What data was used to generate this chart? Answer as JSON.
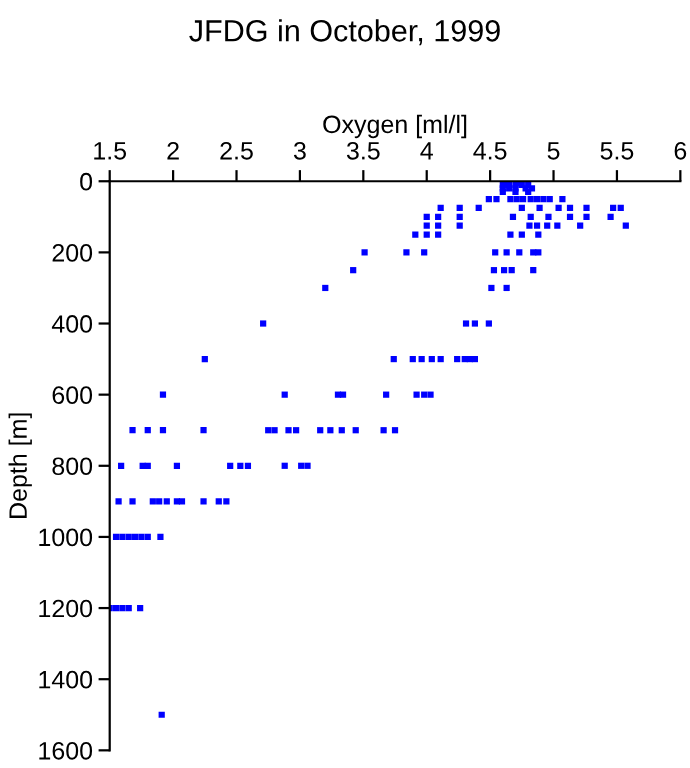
{
  "chart_data": {
    "type": "scatter",
    "title": "JFDG in October, 1999",
    "xlabel": "Oxygen [ml/l]",
    "ylabel": "Depth [m]",
    "xlim": [
      1.5,
      6
    ],
    "ylim": [
      1600,
      0
    ],
    "xticks": [
      1.5,
      2,
      2.5,
      3,
      3.5,
      4,
      4.5,
      5,
      5.5,
      6
    ],
    "yticks": [
      0,
      200,
      400,
      600,
      800,
      1000,
      1200,
      1400,
      1600
    ],
    "grid": false,
    "marker": "square",
    "series": [
      {
        "color": "#0000ff",
        "x": [
          4.62,
          4.72,
          4.6,
          4.65,
          4.7,
          4.75,
          4.8,
          4.6,
          4.65,
          4.7,
          4.78,
          4.83,
          4.6,
          4.7,
          4.8,
          4.49,
          4.55,
          4.66,
          4.71,
          4.76,
          4.82,
          4.87,
          4.92,
          4.97,
          5.07,
          4.11,
          4.26,
          4.41,
          4.75,
          4.89,
          5.04,
          5.13,
          5.26,
          5.47,
          5.53,
          4.0,
          4.09,
          4.26,
          4.68,
          4.82,
          4.96,
          5.13,
          5.26,
          5.45,
          4.0,
          4.09,
          4.26,
          4.81,
          4.87,
          4.95,
          5.03,
          5.21,
          5.57,
          3.91,
          4.0,
          4.09,
          4.66,
          4.75,
          4.88,
          3.51,
          3.84,
          3.98,
          4.54,
          4.63,
          4.73,
          4.84,
          4.88,
          3.42,
          4.53,
          4.61,
          4.67,
          4.84,
          3.2,
          4.51,
          4.63,
          2.71,
          4.31,
          4.38,
          4.49,
          2.25,
          3.74,
          3.89,
          3.96,
          4.04,
          4.11,
          4.24,
          4.3,
          4.34,
          4.38,
          1.92,
          2.88,
          3.3,
          3.34,
          3.68,
          3.92,
          3.98,
          4.03,
          1.68,
          1.8,
          1.92,
          2.24,
          2.75,
          2.8,
          2.91,
          2.97,
          3.16,
          3.24,
          3.33,
          3.44,
          3.66,
          3.75,
          1.59,
          1.76,
          1.8,
          2.03,
          2.45,
          2.53,
          2.59,
          2.88,
          3.01,
          3.06,
          1.57,
          1.68,
          1.84,
          1.89,
          1.95,
          2.03,
          2.07,
          2.24,
          2.36,
          2.42,
          1.55,
          1.6,
          1.65,
          1.7,
          1.75,
          1.8,
          1.9,
          1.5,
          1.55,
          1.6,
          1.65,
          1.74,
          1.91
        ],
        "values": [
          5,
          5,
          10,
          10,
          10,
          10,
          10,
          20,
          20,
          20,
          20,
          20,
          30,
          30,
          30,
          50,
          50,
          50,
          50,
          50,
          50,
          50,
          50,
          50,
          50,
          75,
          75,
          75,
          75,
          75,
          75,
          75,
          75,
          75,
          75,
          100,
          100,
          100,
          100,
          100,
          100,
          100,
          100,
          100,
          125,
          125,
          125,
          125,
          125,
          125,
          125,
          125,
          125,
          150,
          150,
          150,
          150,
          150,
          150,
          200,
          200,
          200,
          200,
          200,
          200,
          200,
          200,
          250,
          250,
          250,
          250,
          250,
          300,
          300,
          300,
          400,
          400,
          400,
          400,
          500,
          500,
          500,
          500,
          500,
          500,
          500,
          500,
          500,
          500,
          600,
          600,
          600,
          600,
          600,
          600,
          600,
          600,
          700,
          700,
          700,
          700,
          700,
          700,
          700,
          700,
          700,
          700,
          700,
          700,
          700,
          700,
          800,
          800,
          800,
          800,
          800,
          800,
          800,
          800,
          800,
          800,
          900,
          900,
          900,
          900,
          900,
          900,
          900,
          900,
          900,
          900,
          1000,
          1000,
          1000,
          1000,
          1000,
          1000,
          1000,
          1200,
          1200,
          1200,
          1200,
          1200,
          1500
        ]
      }
    ]
  }
}
